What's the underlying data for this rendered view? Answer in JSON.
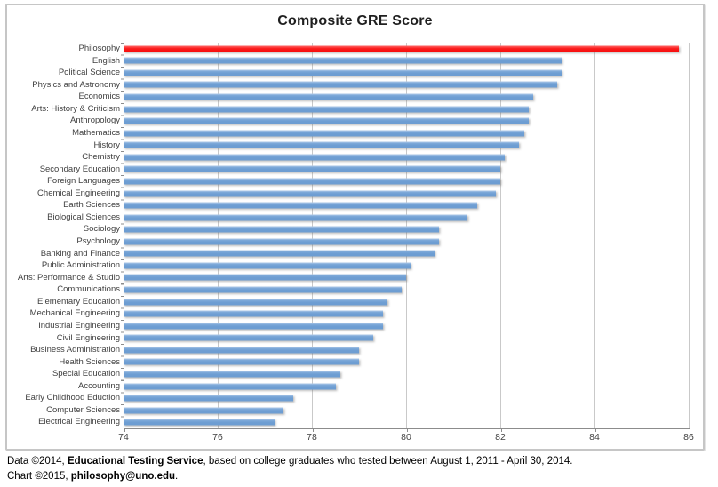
{
  "chart_data": {
    "type": "bar",
    "orientation": "horizontal",
    "title": "Composite GRE Score",
    "categories": [
      "Philosophy",
      "English",
      "Political Science",
      "Physics and Astronomy",
      "Economics",
      "Arts: History & Criticism",
      "Anthropology",
      "Mathematics",
      "History",
      "Chemistry",
      "Secondary Education",
      "Foreign Languages",
      "Chemical Engineering",
      "Earth Sciences",
      "Biological Sciences",
      "Sociology",
      "Psychology",
      "Banking and Finance",
      "Public Administration",
      "Arts: Performance & Studio",
      "Communications",
      "Elementary Education",
      "Mechanical Engineering",
      "Industrial Engineering",
      "Civil Engineering",
      "Business Administration",
      "Health Sciences",
      "Special Education",
      "Accounting",
      "Early Childhood Eduction",
      "Computer Sciences",
      "Electrical Engineering"
    ],
    "values": [
      85.8,
      83.3,
      83.3,
      83.2,
      82.7,
      82.6,
      82.6,
      82.5,
      82.4,
      82.1,
      82.0,
      82.0,
      81.9,
      81.5,
      81.3,
      80.7,
      80.7,
      80.6,
      80.1,
      80.0,
      79.9,
      79.6,
      79.5,
      79.5,
      79.3,
      79.0,
      79.0,
      78.6,
      78.5,
      77.6,
      77.4,
      77.2
    ],
    "highlight_category": "Philosophy",
    "bar_color": "#6D9DD2",
    "highlight_color": "#F60D0D",
    "xlim": [
      74,
      86
    ],
    "xticks": [
      74,
      76,
      78,
      80,
      82,
      84,
      86
    ],
    "grid": true,
    "legend": false
  },
  "footer": {
    "line1": [
      {
        "text": "Data ©2014, ",
        "bold": false
      },
      {
        "text": "Educational Testing Service",
        "bold": true
      },
      {
        "text": ", based on college graduates who tested between August 1, 2011 - April 30, 2014.",
        "bold": false
      }
    ],
    "line2": [
      {
        "text": "Chart ©2015, ",
        "bold": false
      },
      {
        "text": "philosophy@uno.edu",
        "bold": true
      },
      {
        "text": ".",
        "bold": false
      }
    ]
  }
}
